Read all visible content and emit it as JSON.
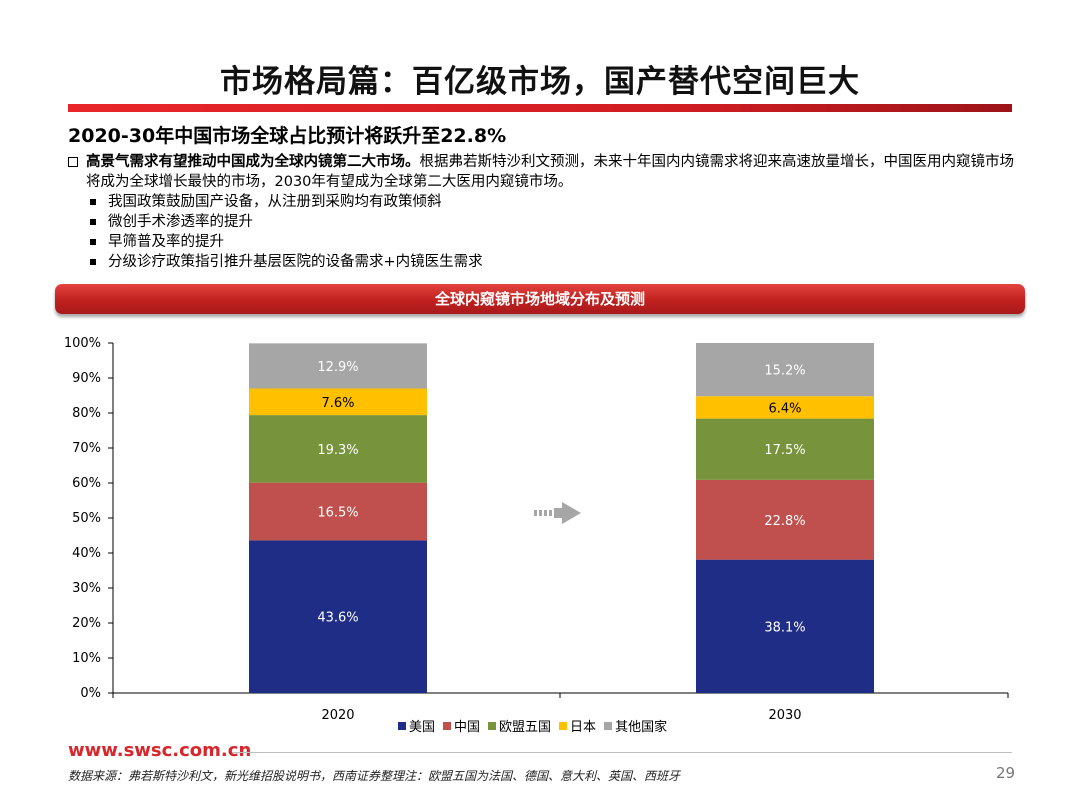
{
  "header": {
    "title": "市场格局篇：百亿级市场，国产替代空间巨大",
    "subtitle": "2020-30年中国市场全球占比预计将跃升至22.8%"
  },
  "bullets": {
    "main_bold": "高景气需求有望推动中国成为全球内镜第二大市场。",
    "main_text": "根据弗若斯特沙利文预测，未来十年国内内镜需求将迎来高速放量增长，中国医用内窥镜市场将成为全球增长最快的市场，2030年有望成为全球第二大医用内窥镜市场。",
    "sub": [
      "我国政策鼓励国产设备，从注册到采购均有政策倾斜",
      "微创手术渗透率的提升",
      "早筛普及率的提升",
      "分级诊疗政策指引推升基层医院的设备需求+内镜医生需求"
    ]
  },
  "banner": {
    "label": "全球内窥镜市场地域分布及预测"
  },
  "chart_data": {
    "type": "bar",
    "stacked": true,
    "categories": [
      "2020",
      "2030"
    ],
    "series": [
      {
        "name": "美国",
        "color": "#1f2d86",
        "values": [
          43.6,
          38.1
        ],
        "labels": [
          "43.6%",
          "38.1%"
        ]
      },
      {
        "name": "中国",
        "color": "#c0504d",
        "values": [
          16.5,
          22.8
        ],
        "labels": [
          "16.5%",
          "22.8%"
        ]
      },
      {
        "name": "欧盟五国",
        "color": "#77933c",
        "values": [
          19.3,
          17.5
        ],
        "labels": [
          "19.3%",
          "17.5%"
        ]
      },
      {
        "name": "日本",
        "color": "#ffc000",
        "values": [
          7.6,
          6.4
        ],
        "labels": [
          "7.6%",
          "6.4%"
        ]
      },
      {
        "name": "其他国家",
        "color": "#a6a6a6",
        "values": [
          12.9,
          15.2
        ],
        "labels": [
          "12.9%",
          "15.2%"
        ]
      }
    ],
    "yticks": [
      "0%",
      "10%",
      "20%",
      "30%",
      "40%",
      "50%",
      "60%",
      "70%",
      "80%",
      "90%",
      "100%"
    ],
    "ylim": [
      0,
      100
    ],
    "legend": "bottom",
    "grid": false,
    "arrow_color": "#a6a6a6"
  },
  "footer": {
    "website": "www.swsc.com.cn",
    "source": "数据来源：弗若斯特沙利文，新光维招股说明书，西南证券整理注：欧盟五国为法国、德国、意大利、英国、西班牙",
    "page": "29"
  }
}
